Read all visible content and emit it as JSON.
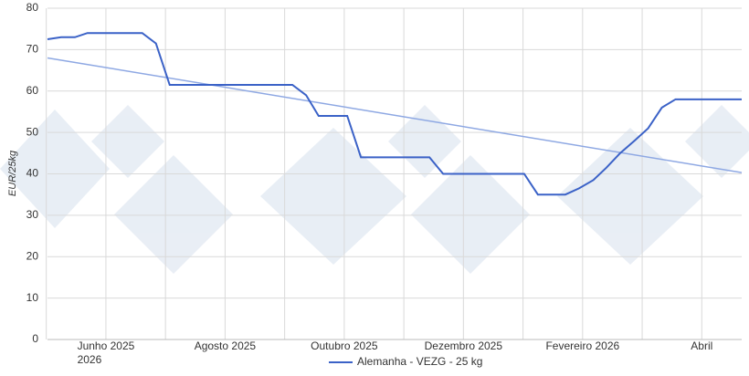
{
  "chart_data": {
    "type": "line",
    "y_label": "EUR/25kg",
    "x": [
      -0.98,
      -0.75,
      -0.52,
      -0.31,
      0.61,
      0.84,
      1.07,
      3.13,
      3.36,
      3.57,
      4.05,
      4.28,
      5.43,
      5.66,
      7.02,
      7.25,
      7.71,
      7.94,
      8.18,
      8.4,
      8.63,
      8.87,
      9.1,
      9.33,
      9.56,
      10.67
    ],
    "series": [
      {
        "name": "Alemanha - VEZG - 25 kg",
        "color": "#3b62c7",
        "values": [
          72.5,
          73,
          73,
          74,
          74,
          71.5,
          61.5,
          61.5,
          59,
          54,
          54,
          44,
          44,
          40,
          40,
          35,
          35,
          36.5,
          38.5,
          41.5,
          45,
          48,
          51,
          56,
          58,
          58
        ]
      }
    ],
    "trendline": {
      "x": [
        -0.98,
        10.67
      ],
      "values": [
        68,
        40.3
      ],
      "color": "#8ea8e3"
    },
    "xlim": [
      -0.98,
      10.67
    ],
    "xticks": [
      {
        "value": -1,
        "label": null
      },
      {
        "value": 0,
        "label": "Junho 2025"
      },
      {
        "value": 1,
        "label": null
      },
      {
        "value": 2,
        "label": "Agosto 2025"
      },
      {
        "value": 3,
        "label": null
      },
      {
        "value": 4,
        "label": "Outubro 2025"
      },
      {
        "value": 5,
        "label": null
      },
      {
        "value": 6,
        "label": "Dezembro 2025"
      },
      {
        "value": 7,
        "label": null
      },
      {
        "value": 8,
        "label": "Fevereiro 2026"
      },
      {
        "value": 9,
        "label": null
      },
      {
        "value": 10,
        "label": "Abril"
      }
    ],
    "x_tick_sublabel": "2026",
    "ylim": [
      0,
      80
    ],
    "yticks": [
      0,
      10,
      20,
      30,
      40,
      50,
      60,
      70,
      80
    ],
    "grid": true,
    "legend": "bottom"
  }
}
